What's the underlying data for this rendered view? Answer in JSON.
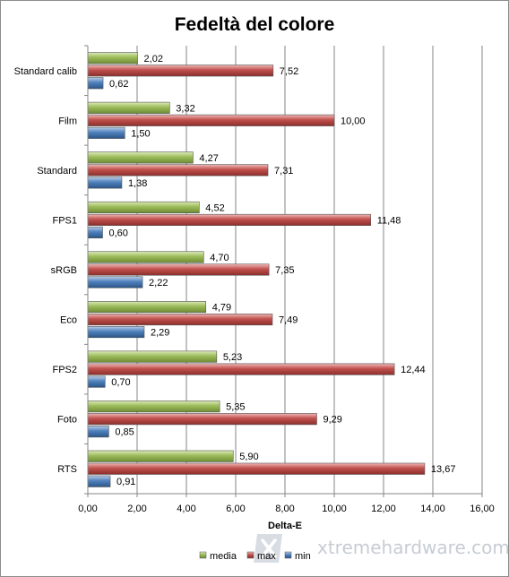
{
  "chart_data": {
    "type": "bar",
    "orientation": "horizontal",
    "title": "Fedeltà del colore",
    "xlabel": "Delta-E",
    "ylabel": "",
    "categories": [
      "Standard calib",
      "Film",
      "Standard",
      "FPS1",
      "sRGB",
      "Eco",
      "FPS2",
      "Foto",
      "RTS"
    ],
    "series": [
      {
        "name": "media",
        "color": "#9bbb59",
        "values": [
          2.02,
          3.32,
          4.27,
          4.52,
          4.7,
          4.79,
          5.23,
          5.35,
          5.9
        ],
        "labels": [
          "2,02",
          "3,32",
          "4,27",
          "4,52",
          "4,70",
          "4,79",
          "5,23",
          "5,35",
          "5,90"
        ]
      },
      {
        "name": "max",
        "color": "#c0504d",
        "values": [
          7.52,
          10.0,
          7.31,
          11.48,
          7.35,
          7.49,
          12.44,
          9.29,
          13.67
        ],
        "labels": [
          "7,52",
          "10,00",
          "7,31",
          "11,48",
          "7,35",
          "7,49",
          "12,44",
          "9,29",
          "13,67"
        ]
      },
      {
        "name": "min",
        "color": "#4f81bd",
        "values": [
          0.62,
          1.5,
          1.38,
          0.6,
          2.22,
          2.29,
          0.7,
          0.85,
          0.91
        ],
        "labels": [
          "0,62",
          "1,50",
          "1,38",
          "0,60",
          "2,22",
          "2,29",
          "0,70",
          "0,85",
          "0,91"
        ]
      }
    ],
    "xlim": [
      0,
      16
    ],
    "xticks": [
      0,
      2,
      4,
      6,
      8,
      10,
      12,
      14,
      16
    ],
    "xtick_labels": [
      "0,00",
      "2,00",
      "4,00",
      "6,00",
      "8,00",
      "10,00",
      "12,00",
      "14,00",
      "16,00"
    ],
    "grid": true,
    "legend_position": "bottom"
  },
  "watermark": {
    "text": "xtremehardware.com"
  }
}
